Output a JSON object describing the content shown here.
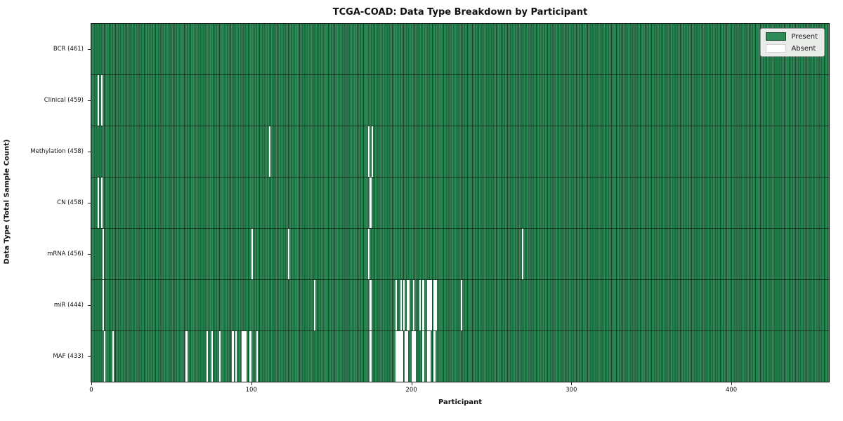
{
  "chart_data": {
    "type": "heatmap",
    "title": "TCGA-COAD: Data Type Breakdown by Participant",
    "xlabel": "Participant",
    "ylabel": "Data Type (Total Sample Count)",
    "xlim": [
      0,
      461
    ],
    "x_ticks": [
      0,
      100,
      200,
      300,
      400
    ],
    "legend": [
      "Present",
      "Absent"
    ],
    "legend_position": "upper right",
    "colors": {
      "present": "#2e8b57",
      "cell_edge": "#17452a",
      "absent": "#ffffff",
      "legend_bg": "#e9ece9"
    },
    "total_participants": 461,
    "rows": [
      {
        "label": "BCR (461)",
        "name": "BCR",
        "present_count": 461,
        "absent_participants": []
      },
      {
        "label": "Clinical (459)",
        "name": "Clinical",
        "present_count": 459,
        "absent_participants": [
          4,
          6
        ]
      },
      {
        "label": "Methylation (458)",
        "name": "Methylation",
        "present_count": 458,
        "absent_participants": [
          111,
          173,
          175
        ]
      },
      {
        "label": "CN (458)",
        "name": "CN",
        "present_count": 458,
        "absent_participants": [
          4,
          6,
          174
        ]
      },
      {
        "label": "mRNA (456)",
        "name": "mRNA",
        "present_count": 456,
        "absent_participants": [
          7,
          100,
          123,
          173,
          269
        ]
      },
      {
        "label": "miR (444)",
        "name": "miR",
        "present_count": 444,
        "absent_participants": [
          7,
          139,
          174,
          190,
          193,
          195,
          197,
          198,
          201,
          205,
          207,
          210,
          211,
          212,
          214,
          215,
          231
        ]
      },
      {
        "label": "MAF (433)",
        "name": "MAF",
        "present_count": 433,
        "absent_participants": [
          8,
          13,
          59,
          72,
          75,
          80,
          88,
          90,
          94,
          95,
          96,
          99,
          103,
          174,
          190,
          191,
          192,
          193,
          194,
          196,
          197,
          200,
          201,
          202,
          207,
          210,
          211,
          214
        ]
      }
    ]
  }
}
